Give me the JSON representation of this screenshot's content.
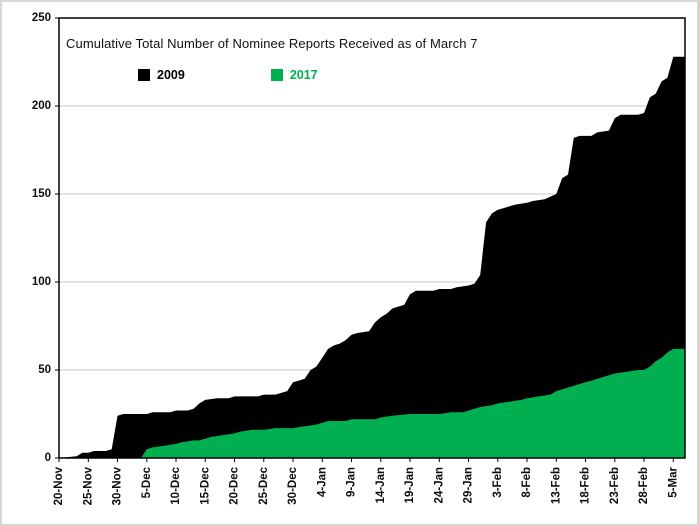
{
  "frame": {
    "background": "#ffffff",
    "border_color": "#d6d6d6"
  },
  "chart_data": {
    "type": "area",
    "title": "Cumulative Total Number of Nominee Reports Received as of March 7",
    "xlabel": "",
    "ylabel": "",
    "ylim": [
      0,
      250
    ],
    "y_ticks": [
      0,
      50,
      100,
      150,
      200,
      250
    ],
    "x_tick_labels": [
      "20-Nov",
      "25-Nov",
      "30-Nov",
      "5-Dec",
      "10-Dec",
      "15-Dec",
      "20-Dec",
      "25-Dec",
      "30-Dec",
      "4-Jan",
      "9-Jan",
      "14-Jan",
      "19-Jan",
      "24-Jan",
      "29-Jan",
      "3-Feb",
      "8-Feb",
      "13-Feb",
      "18-Feb",
      "23-Feb",
      "28-Feb",
      "5-Mar"
    ],
    "x_tick_days": [
      0,
      5,
      10,
      15,
      20,
      25,
      30,
      35,
      40,
      45,
      50,
      55,
      60,
      65,
      70,
      75,
      80,
      85,
      90,
      95,
      100,
      105
    ],
    "day_range": [
      0,
      107
    ],
    "grid": true,
    "grid_color": "#c8c8c8",
    "axis_color": "#000000",
    "legend_position": "top-left-inside",
    "series": [
      {
        "name": "2009",
        "color": "#000000",
        "label_color": "#000000",
        "points": [
          [
            0,
            0
          ],
          [
            3,
            1
          ],
          [
            4,
            3
          ],
          [
            5,
            3
          ],
          [
            6,
            4
          ],
          [
            8,
            4
          ],
          [
            9,
            5
          ],
          [
            10,
            24
          ],
          [
            11,
            25
          ],
          [
            14,
            25
          ],
          [
            15,
            25
          ],
          [
            16,
            26
          ],
          [
            19,
            26
          ],
          [
            20,
            27
          ],
          [
            22,
            27
          ],
          [
            23,
            28
          ],
          [
            24,
            31
          ],
          [
            25,
            33
          ],
          [
            27,
            34
          ],
          [
            29,
            34
          ],
          [
            30,
            35
          ],
          [
            34,
            35
          ],
          [
            35,
            36
          ],
          [
            37,
            36
          ],
          [
            38,
            37
          ],
          [
            39,
            38
          ],
          [
            40,
            43
          ],
          [
            41,
            44
          ],
          [
            42,
            45
          ],
          [
            43,
            50
          ],
          [
            44,
            52
          ],
          [
            45,
            57
          ],
          [
            46,
            62
          ],
          [
            47,
            64
          ],
          [
            48,
            65
          ],
          [
            49,
            67
          ],
          [
            50,
            70
          ],
          [
            51,
            71
          ],
          [
            53,
            72
          ],
          [
            54,
            77
          ],
          [
            55,
            80
          ],
          [
            56,
            82
          ],
          [
            57,
            85
          ],
          [
            58,
            86
          ],
          [
            59,
            87
          ],
          [
            60,
            93
          ],
          [
            61,
            95
          ],
          [
            64,
            95
          ],
          [
            65,
            96
          ],
          [
            67,
            96
          ],
          [
            68,
            97
          ],
          [
            70,
            98
          ],
          [
            71,
            99
          ],
          [
            72,
            104
          ],
          [
            73,
            134
          ],
          [
            74,
            139
          ],
          [
            75,
            141
          ],
          [
            76,
            142
          ],
          [
            78,
            144
          ],
          [
            80,
            145
          ],
          [
            81,
            146
          ],
          [
            83,
            147
          ],
          [
            85,
            150
          ],
          [
            86,
            159
          ],
          [
            87,
            161
          ],
          [
            88,
            182
          ],
          [
            89,
            183
          ],
          [
            91,
            183
          ],
          [
            92,
            185
          ],
          [
            94,
            186
          ],
          [
            95,
            193
          ],
          [
            96,
            195
          ],
          [
            99,
            195
          ],
          [
            100,
            196
          ],
          [
            101,
            205
          ],
          [
            102,
            207
          ],
          [
            103,
            214
          ],
          [
            104,
            216
          ],
          [
            105,
            228
          ],
          [
            107,
            228
          ]
        ]
      },
      {
        "name": "2017",
        "color": "#00b050",
        "label_color": "#00b050",
        "points": [
          [
            0,
            0
          ],
          [
            14,
            0
          ],
          [
            15,
            5
          ],
          [
            16,
            6
          ],
          [
            18,
            7
          ],
          [
            20,
            8
          ],
          [
            21,
            9
          ],
          [
            23,
            10
          ],
          [
            24,
            10
          ],
          [
            25,
            11
          ],
          [
            26,
            12
          ],
          [
            28,
            13
          ],
          [
            30,
            14
          ],
          [
            31,
            15
          ],
          [
            33,
            16
          ],
          [
            35,
            16
          ],
          [
            37,
            17
          ],
          [
            40,
            17
          ],
          [
            42,
            18
          ],
          [
            44,
            19
          ],
          [
            45,
            20
          ],
          [
            46,
            21
          ],
          [
            49,
            21
          ],
          [
            50,
            22
          ],
          [
            54,
            22
          ],
          [
            55,
            23
          ],
          [
            57,
            24
          ],
          [
            60,
            25
          ],
          [
            64,
            25
          ],
          [
            65,
            25
          ],
          [
            67,
            26
          ],
          [
            69,
            26
          ],
          [
            70,
            27
          ],
          [
            71,
            28
          ],
          [
            72,
            29
          ],
          [
            74,
            30
          ],
          [
            75,
            31
          ],
          [
            77,
            32
          ],
          [
            79,
            33
          ],
          [
            80,
            34
          ],
          [
            82,
            35
          ],
          [
            84,
            36
          ],
          [
            85,
            38
          ],
          [
            86,
            39
          ],
          [
            88,
            41
          ],
          [
            90,
            43
          ],
          [
            91,
            44
          ],
          [
            93,
            46
          ],
          [
            95,
            48
          ],
          [
            97,
            49
          ],
          [
            99,
            50
          ],
          [
            100,
            50
          ],
          [
            101,
            52
          ],
          [
            102,
            55
          ],
          [
            103,
            57
          ],
          [
            104,
            60
          ],
          [
            105,
            62
          ],
          [
            107,
            62
          ]
        ]
      }
    ]
  }
}
